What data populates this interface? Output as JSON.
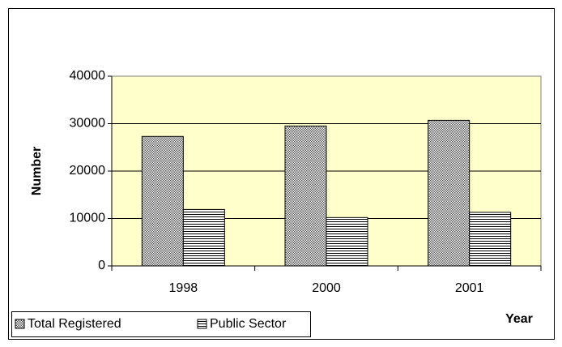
{
  "chart_data": {
    "type": "bar",
    "categories": [
      "1998",
      "2000",
      "2001"
    ],
    "series": [
      {
        "name": "Total Registered",
        "color": "#555555",
        "values": [
          27300,
          29500,
          30700
        ]
      },
      {
        "name": "Public Sector",
        "color": "#000000",
        "values": [
          11900,
          10200,
          11300
        ]
      }
    ],
    "ylabel": "Number",
    "xlabel": "Year",
    "ylim": [
      0,
      40000
    ],
    "yticks": [
      0,
      10000,
      20000,
      30000,
      40000
    ],
    "grid": true,
    "legend": "bottom-left"
  }
}
